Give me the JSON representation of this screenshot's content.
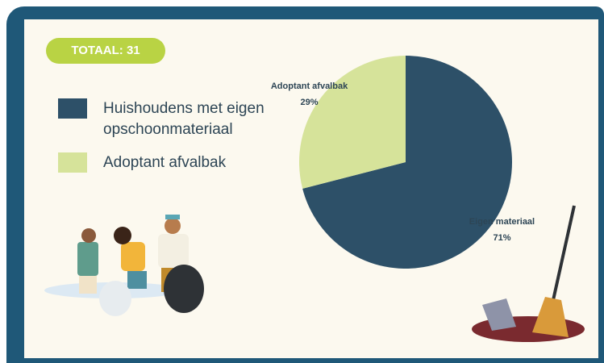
{
  "chart_data": {
    "type": "pie",
    "total": "TOTAAL: 31",
    "categories": [
      "Huishoudens met eigen opschoonmateriaal",
      "Adoptant afvalbak"
    ],
    "slice_labels": [
      "Eigen materiaal",
      "Adoptant afvalbak"
    ],
    "values": [
      71,
      29
    ],
    "value_labels": [
      "71%",
      "29%"
    ],
    "colors": [
      "#2d5068",
      "#d6e39a"
    ]
  }
}
